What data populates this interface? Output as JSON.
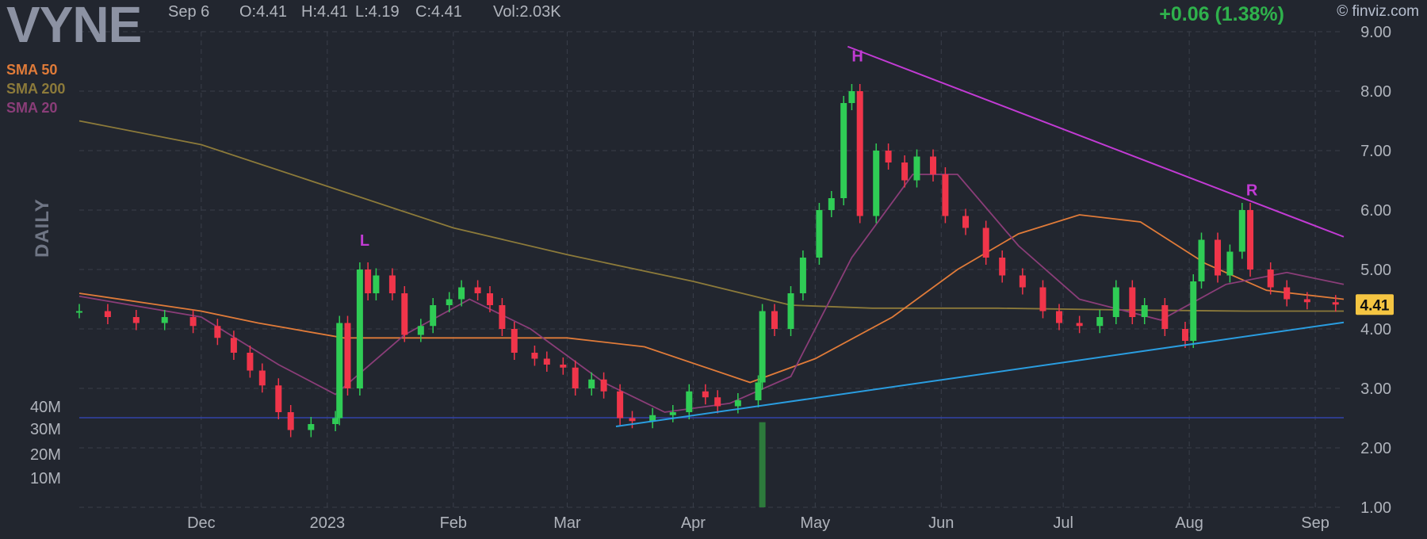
{
  "header": {
    "ticker": "VYNE",
    "date": "Sep 6",
    "open": "O:4.41",
    "high": "H:4.41",
    "low": "L:4.19",
    "close": "C:4.41",
    "volume": "Vol:2.03K",
    "change": "+0.06 (1.38%)",
    "brand": "© finviz.com"
  },
  "legend": [
    {
      "label": "SMA 50",
      "color": "#e07b39"
    },
    {
      "label": "SMA 200",
      "color": "#8c7a3a"
    },
    {
      "label": "SMA 20",
      "color": "#8a3d78"
    }
  ],
  "period_label": "DAILY",
  "colors": {
    "background": "#22262f",
    "up": "#2fcc55",
    "down": "#f0354a",
    "grid": "#3a3f4a",
    "text": "#b0b4bc",
    "resistance": "#c23bd4",
    "support": "#2a9de0",
    "volume_line": "#3344aa"
  },
  "chart_data": {
    "type": "candlestick",
    "price_axis": {
      "ticks": [
        "9.00",
        "8.00",
        "7.00",
        "6.00",
        "5.00",
        "4.00",
        "3.00",
        "2.00",
        "1.00"
      ],
      "min": 1.0,
      "max": 9.0
    },
    "volume_axis": {
      "ticks": [
        "40M",
        "30M",
        "20M",
        "10M"
      ]
    },
    "x_ticks": [
      "Dec",
      "2023",
      "Feb",
      "Mar",
      "Apr",
      "May",
      "Jun",
      "Jul",
      "Aug",
      "Sep"
    ],
    "last_price": "4.41",
    "annotations": [
      {
        "text": "L",
        "date": "2023-01-09",
        "price": 5.4
      },
      {
        "text": "H",
        "date": "2023-05-10",
        "price": 8.5
      },
      {
        "text": "R",
        "date": "2023-08-15",
        "price": 6.25
      }
    ],
    "trendlines": [
      {
        "name": "resistance",
        "from": {
          "date": "2023-05-09",
          "price": 8.75
        },
        "to": {
          "date": "2023-09-08",
          "price": 5.55
        }
      },
      {
        "name": "support",
        "from": {
          "date": "2023-03-13",
          "price": 2.36
        },
        "to": {
          "date": "2023-09-08",
          "price": 4.11
        }
      }
    ],
    "close_series": [
      [
        "2022-11-01",
        4.3
      ],
      [
        "2022-11-08",
        4.2
      ],
      [
        "2022-11-15",
        4.1
      ],
      [
        "2022-11-22",
        4.2
      ],
      [
        "2022-11-29",
        4.05
      ],
      [
        "2022-12-05",
        3.85
      ],
      [
        "2022-12-09",
        3.6
      ],
      [
        "2022-12-13",
        3.3
      ],
      [
        "2022-12-16",
        3.05
      ],
      [
        "2022-12-20",
        2.6
      ],
      [
        "2022-12-23",
        2.3
      ],
      [
        "2022-12-28",
        2.4
      ],
      [
        "2023-01-03",
        2.5
      ],
      [
        "2023-01-04",
        4.1
      ],
      [
        "2023-01-06",
        3.0
      ],
      [
        "2023-01-09",
        5.0
      ],
      [
        "2023-01-11",
        4.6
      ],
      [
        "2023-01-13",
        4.9
      ],
      [
        "2023-01-17",
        4.6
      ],
      [
        "2023-01-20",
        3.9
      ],
      [
        "2023-01-24",
        4.05
      ],
      [
        "2023-01-27",
        4.4
      ],
      [
        "2023-01-31",
        4.5
      ],
      [
        "2023-02-03",
        4.7
      ],
      [
        "2023-02-07",
        4.6
      ],
      [
        "2023-02-10",
        4.4
      ],
      [
        "2023-02-13",
        4.0
      ],
      [
        "2023-02-16",
        3.6
      ],
      [
        "2023-02-21",
        3.5
      ],
      [
        "2023-02-24",
        3.4
      ],
      [
        "2023-02-28",
        3.35
      ],
      [
        "2023-03-03",
        3.0
      ],
      [
        "2023-03-07",
        3.15
      ],
      [
        "2023-03-10",
        2.95
      ],
      [
        "2023-03-14",
        2.5
      ],
      [
        "2023-03-17",
        2.45
      ],
      [
        "2023-03-22",
        2.55
      ],
      [
        "2023-03-27",
        2.6
      ],
      [
        "2023-03-31",
        2.95
      ],
      [
        "2023-04-04",
        2.85
      ],
      [
        "2023-04-07",
        2.7
      ],
      [
        "2023-04-12",
        2.8
      ],
      [
        "2023-04-17",
        3.1
      ],
      [
        "2023-04-18",
        4.3
      ],
      [
        "2023-04-21",
        4.0
      ],
      [
        "2023-04-25",
        4.6
      ],
      [
        "2023-04-28",
        5.2
      ],
      [
        "2023-05-02",
        6.0
      ],
      [
        "2023-05-05",
        6.2
      ],
      [
        "2023-05-08",
        7.8
      ],
      [
        "2023-05-10",
        8.0
      ],
      [
        "2023-05-12",
        5.9
      ],
      [
        "2023-05-16",
        7.0
      ],
      [
        "2023-05-19",
        6.8
      ],
      [
        "2023-05-23",
        6.5
      ],
      [
        "2023-05-26",
        6.9
      ],
      [
        "2023-05-30",
        6.6
      ],
      [
        "2023-06-02",
        5.9
      ],
      [
        "2023-06-07",
        5.7
      ],
      [
        "2023-06-12",
        5.2
      ],
      [
        "2023-06-16",
        4.9
      ],
      [
        "2023-06-21",
        4.7
      ],
      [
        "2023-06-26",
        4.3
      ],
      [
        "2023-06-30",
        4.1
      ],
      [
        "2023-07-05",
        4.05
      ],
      [
        "2023-07-10",
        4.2
      ],
      [
        "2023-07-14",
        4.7
      ],
      [
        "2023-07-18",
        4.2
      ],
      [
        "2023-07-21",
        4.4
      ],
      [
        "2023-07-26",
        4.0
      ],
      [
        "2023-07-31",
        3.8
      ],
      [
        "2023-08-02",
        4.8
      ],
      [
        "2023-08-04",
        5.5
      ],
      [
        "2023-08-08",
        4.9
      ],
      [
        "2023-08-11",
        5.3
      ],
      [
        "2023-08-14",
        6.0
      ],
      [
        "2023-08-16",
        5.0
      ],
      [
        "2023-08-21",
        4.7
      ],
      [
        "2023-08-25",
        4.5
      ],
      [
        "2023-08-30",
        4.45
      ],
      [
        "2023-09-06",
        4.41
      ]
    ],
    "sma50_series": [
      [
        "2022-11-01",
        4.6
      ],
      [
        "2022-12-01",
        4.3
      ],
      [
        "2022-12-15",
        4.1
      ],
      [
        "2023-01-05",
        3.85
      ],
      [
        "2023-02-01",
        3.85
      ],
      [
        "2023-03-01",
        3.85
      ],
      [
        "2023-03-20",
        3.7
      ],
      [
        "2023-04-15",
        3.1
      ],
      [
        "2023-05-01",
        3.5
      ],
      [
        "2023-05-20",
        4.2
      ],
      [
        "2023-06-05",
        5.0
      ],
      [
        "2023-06-20",
        5.6
      ],
      [
        "2023-07-05",
        5.92
      ],
      [
        "2023-07-20",
        5.8
      ],
      [
        "2023-08-05",
        5.1
      ],
      [
        "2023-08-20",
        4.65
      ],
      [
        "2023-09-08",
        4.5
      ]
    ],
    "sma200_series": [
      [
        "2022-11-01",
        7.5
      ],
      [
        "2022-12-01",
        7.1
      ],
      [
        "2023-01-01",
        6.4
      ],
      [
        "2023-02-01",
        5.7
      ],
      [
        "2023-03-01",
        5.25
      ],
      [
        "2023-04-01",
        4.8
      ],
      [
        "2023-04-25",
        4.4
      ],
      [
        "2023-05-15",
        4.35
      ],
      [
        "2023-06-15",
        4.35
      ],
      [
        "2023-07-15",
        4.32
      ],
      [
        "2023-08-15",
        4.3
      ],
      [
        "2023-09-08",
        4.3
      ]
    ],
    "sma20_series": [
      [
        "2022-11-01",
        4.55
      ],
      [
        "2022-12-01",
        4.2
      ],
      [
        "2022-12-20",
        3.4
      ],
      [
        "2023-01-03",
        2.9
      ],
      [
        "2023-01-20",
        3.9
      ],
      [
        "2023-02-05",
        4.5
      ],
      [
        "2023-02-20",
        4.0
      ],
      [
        "2023-03-10",
        3.1
      ],
      [
        "2023-03-25",
        2.6
      ],
      [
        "2023-04-10",
        2.75
      ],
      [
        "2023-04-25",
        3.2
      ],
      [
        "2023-05-10",
        5.2
      ],
      [
        "2023-05-25",
        6.6
      ],
      [
        "2023-06-05",
        6.6
      ],
      [
        "2023-06-20",
        5.4
      ],
      [
        "2023-07-05",
        4.5
      ],
      [
        "2023-07-25",
        4.15
      ],
      [
        "2023-08-10",
        4.75
      ],
      [
        "2023-08-25",
        4.95
      ],
      [
        "2023-09-08",
        4.75
      ]
    ],
    "volume_spikes": [
      {
        "date": "2023-04-18",
        "volume_m": 38
      }
    ]
  }
}
